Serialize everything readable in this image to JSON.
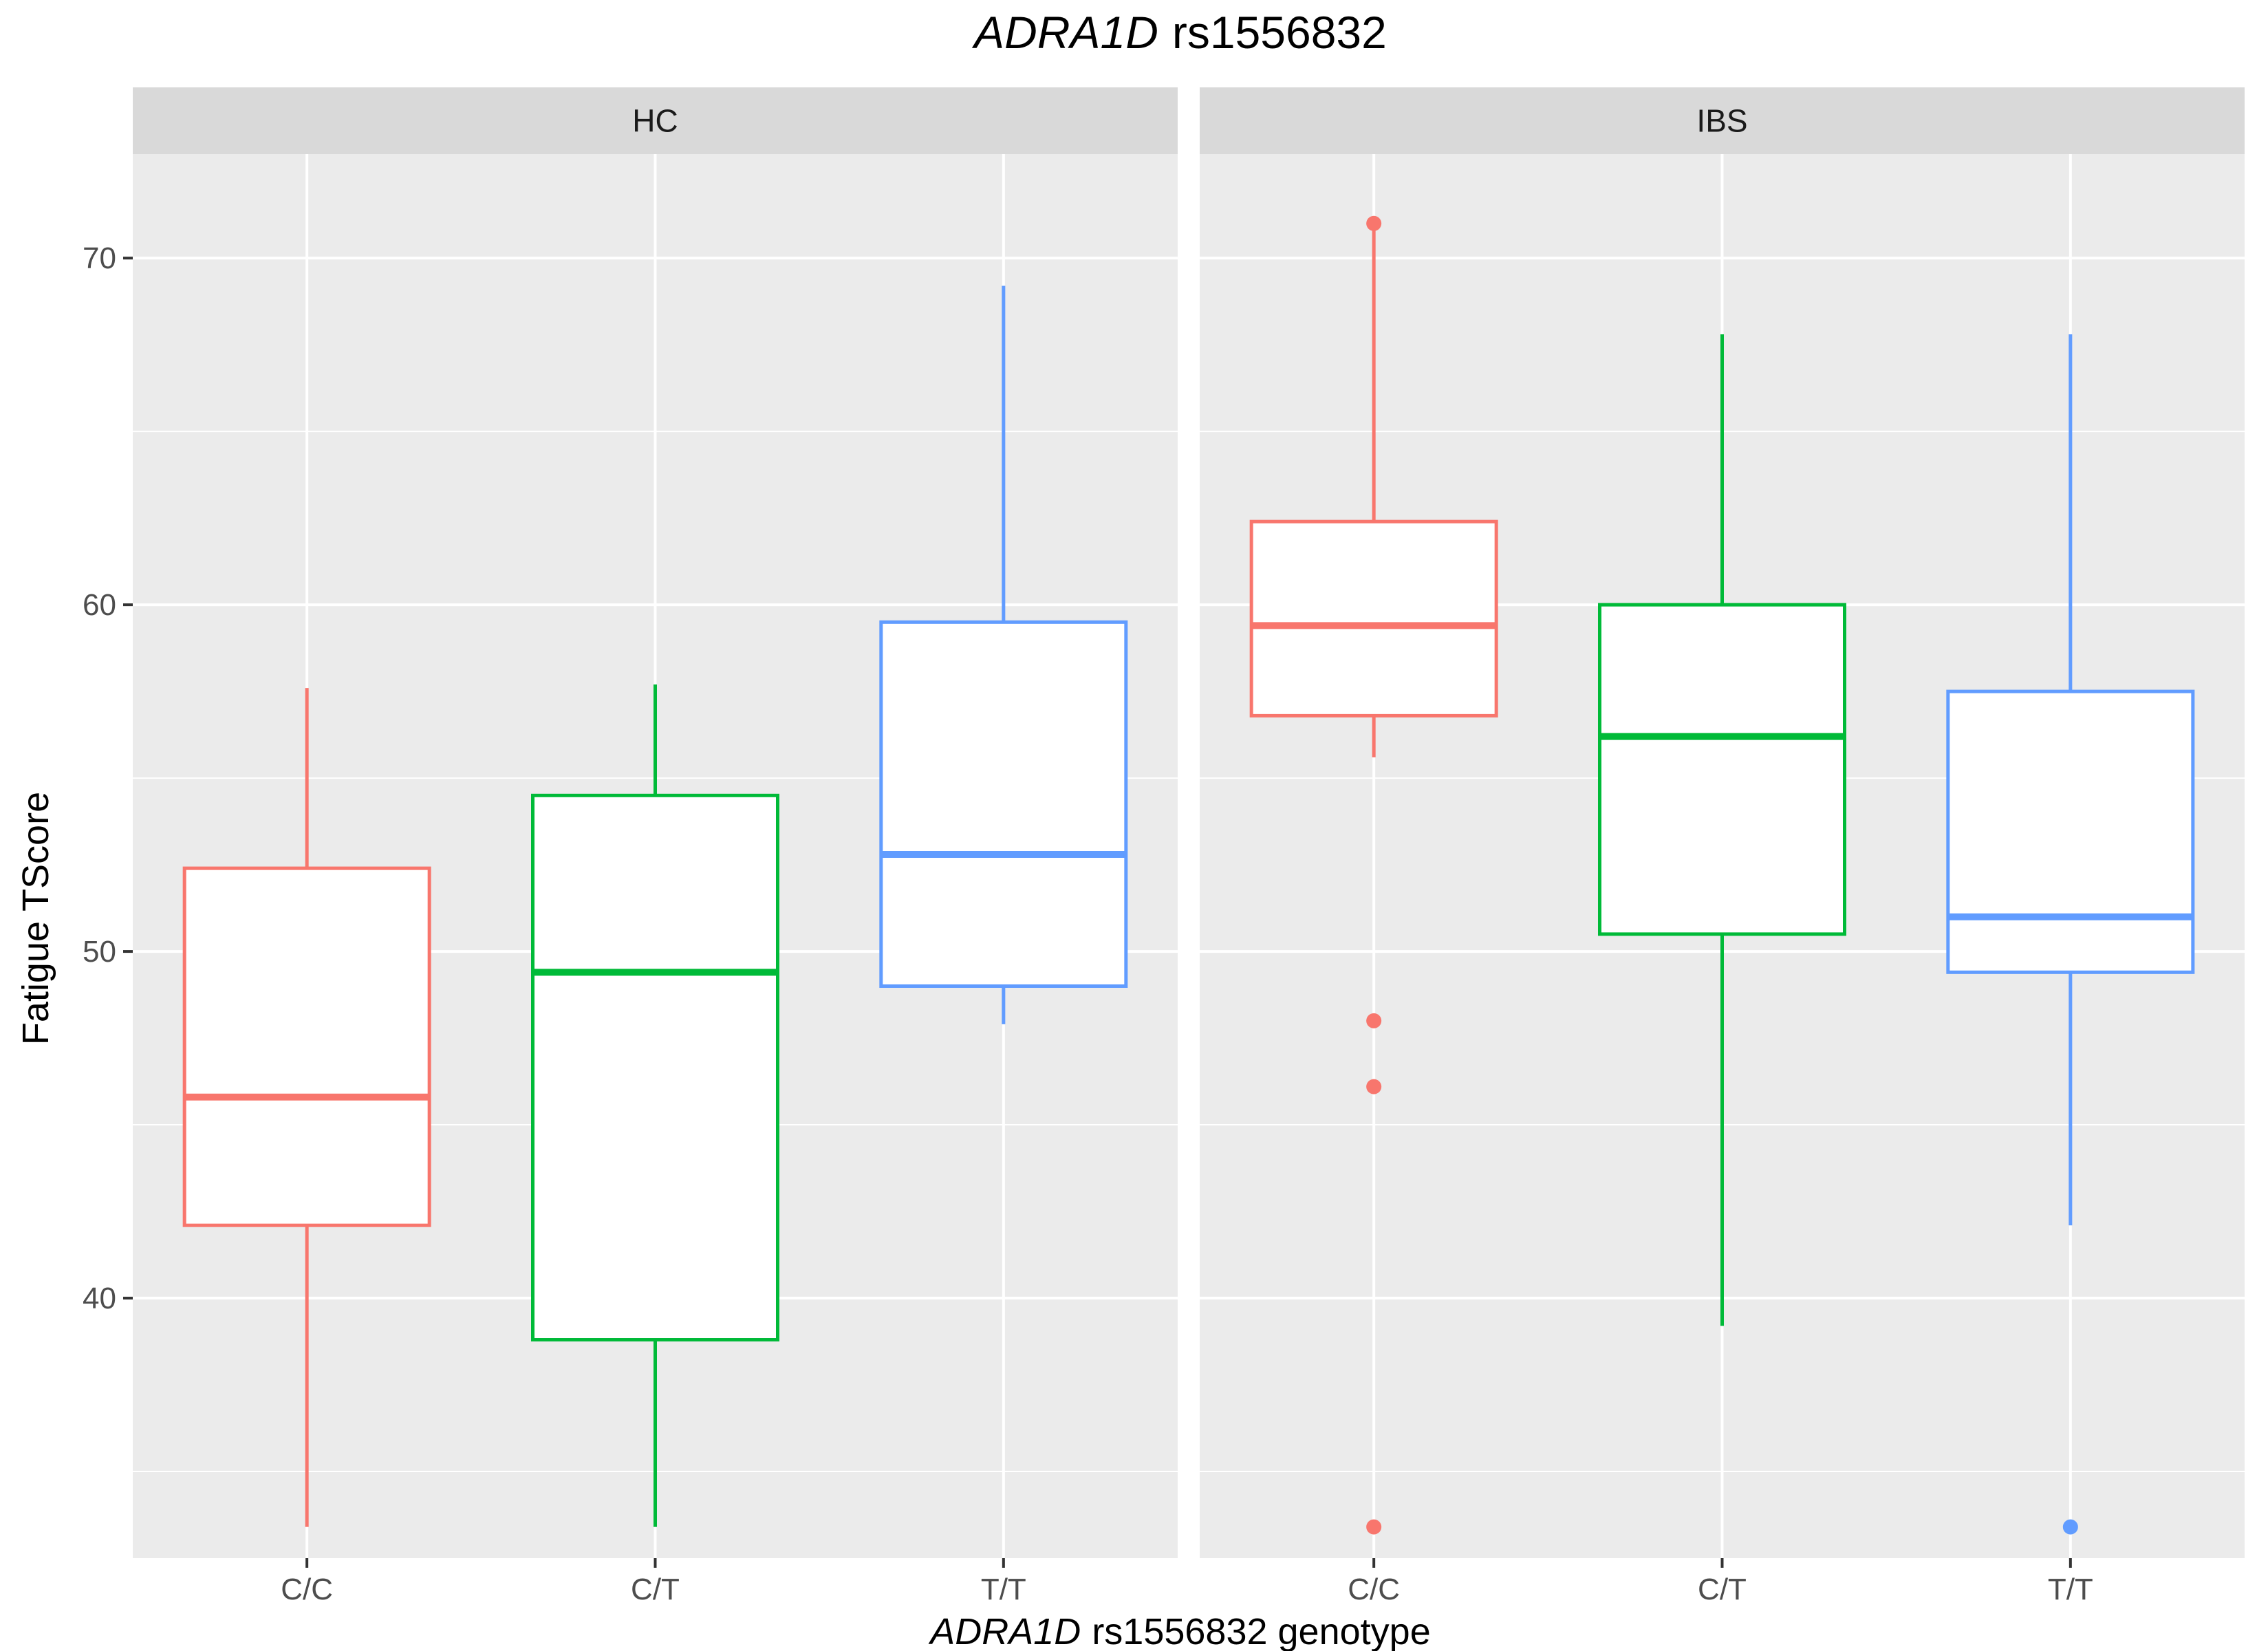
{
  "chart_data": {
    "type": "boxplot",
    "title": {
      "gene": "ADRA1D",
      "snp": "rs1556832"
    },
    "xlabel": {
      "gene": "ADRA1D",
      "rest": "rs1556832 genotype"
    },
    "ylabel": "Fatigue TScore",
    "ylim": [
      32.5,
      73
    ],
    "yticks": [
      40,
      50,
      60,
      70
    ],
    "yticks_minor": [
      35,
      45,
      55,
      65
    ],
    "categories": [
      "C/C",
      "C/T",
      "T/T"
    ],
    "colors": {
      "C/C": "#F8766D",
      "C/T": "#00BA38",
      "T/T": "#619CFF"
    },
    "panels": [
      {
        "label": "HC",
        "boxes": [
          {
            "genotype": "C/C",
            "lower_whisker": 33.4,
            "q1": 42.1,
            "median": 45.8,
            "q3": 52.4,
            "upper_whisker": 57.6,
            "outliers": []
          },
          {
            "genotype": "C/T",
            "lower_whisker": 33.4,
            "q1": 38.8,
            "median": 49.4,
            "q3": 54.5,
            "upper_whisker": 57.7,
            "outliers": []
          },
          {
            "genotype": "T/T",
            "lower_whisker": 47.9,
            "q1": 49.0,
            "median": 52.8,
            "q3": 59.5,
            "upper_whisker": 69.2,
            "outliers": []
          }
        ]
      },
      {
        "label": "IBS",
        "boxes": [
          {
            "genotype": "C/C",
            "lower_whisker": 55.6,
            "q1": 56.8,
            "median": 59.4,
            "q3": 62.4,
            "upper_whisker": 71.0,
            "outliers": [
              71.0,
              48.0,
              46.1,
              33.4
            ]
          },
          {
            "genotype": "C/T",
            "lower_whisker": 39.2,
            "q1": 50.5,
            "median": 56.2,
            "q3": 60.0,
            "upper_whisker": 67.8,
            "outliers": []
          },
          {
            "genotype": "T/T",
            "lower_whisker": 42.1,
            "q1": 49.4,
            "median": 51.0,
            "q3": 57.5,
            "upper_whisker": 67.8,
            "outliers": [
              33.4
            ]
          }
        ]
      }
    ]
  }
}
